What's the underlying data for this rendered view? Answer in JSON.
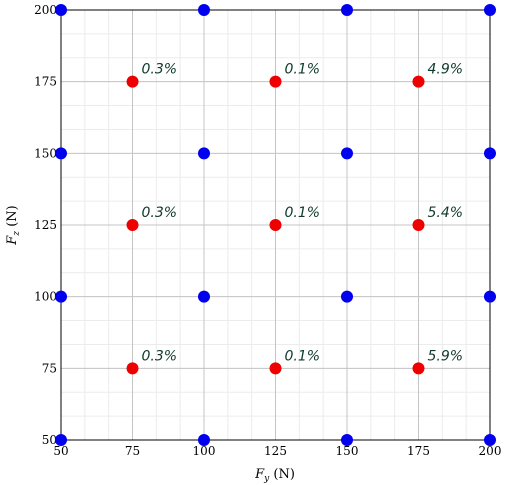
{
  "chart_data": {
    "type": "scatter",
    "xlabel": "F_y (N)",
    "ylabel": "F_z (N)",
    "xlim": [
      50,
      200
    ],
    "ylim": [
      50,
      200
    ],
    "x_ticks": [
      "50",
      "75",
      "100",
      "125",
      "150",
      "175",
      "200"
    ],
    "y_ticks": [
      "50",
      "75",
      "100",
      "125",
      "150",
      "175",
      "200"
    ],
    "grid": true,
    "series": [
      {
        "color": "#0000ee",
        "points": [
          {
            "x": 50,
            "y": 200
          },
          {
            "x": 100,
            "y": 200
          },
          {
            "x": 150,
            "y": 200
          },
          {
            "x": 200,
            "y": 200
          },
          {
            "x": 50,
            "y": 150
          },
          {
            "x": 100,
            "y": 150
          },
          {
            "x": 150,
            "y": 150
          },
          {
            "x": 200,
            "y": 150
          },
          {
            "x": 50,
            "y": 100
          },
          {
            "x": 100,
            "y": 100
          },
          {
            "x": 150,
            "y": 100
          },
          {
            "x": 200,
            "y": 100
          },
          {
            "x": 50,
            "y": 50
          },
          {
            "x": 100,
            "y": 50
          },
          {
            "x": 150,
            "y": 50
          },
          {
            "x": 200,
            "y": 50
          }
        ]
      },
      {
        "color": "#ee0000",
        "points": [
          {
            "x": 75,
            "y": 175,
            "label": "0.3%"
          },
          {
            "x": 125,
            "y": 175,
            "label": "0.1%"
          },
          {
            "x": 175,
            "y": 175,
            "label": "4.9%"
          },
          {
            "x": 75,
            "y": 125,
            "label": "0.3%"
          },
          {
            "x": 125,
            "y": 125,
            "label": "0.1%"
          },
          {
            "x": 175,
            "y": 125,
            "label": "5.4%"
          },
          {
            "x": 75,
            "y": 75,
            "label": "0.3%"
          },
          {
            "x": 125,
            "y": 75,
            "label": "0.1%"
          },
          {
            "x": 175,
            "y": 75,
            "label": "5.9%"
          }
        ]
      }
    ]
  }
}
